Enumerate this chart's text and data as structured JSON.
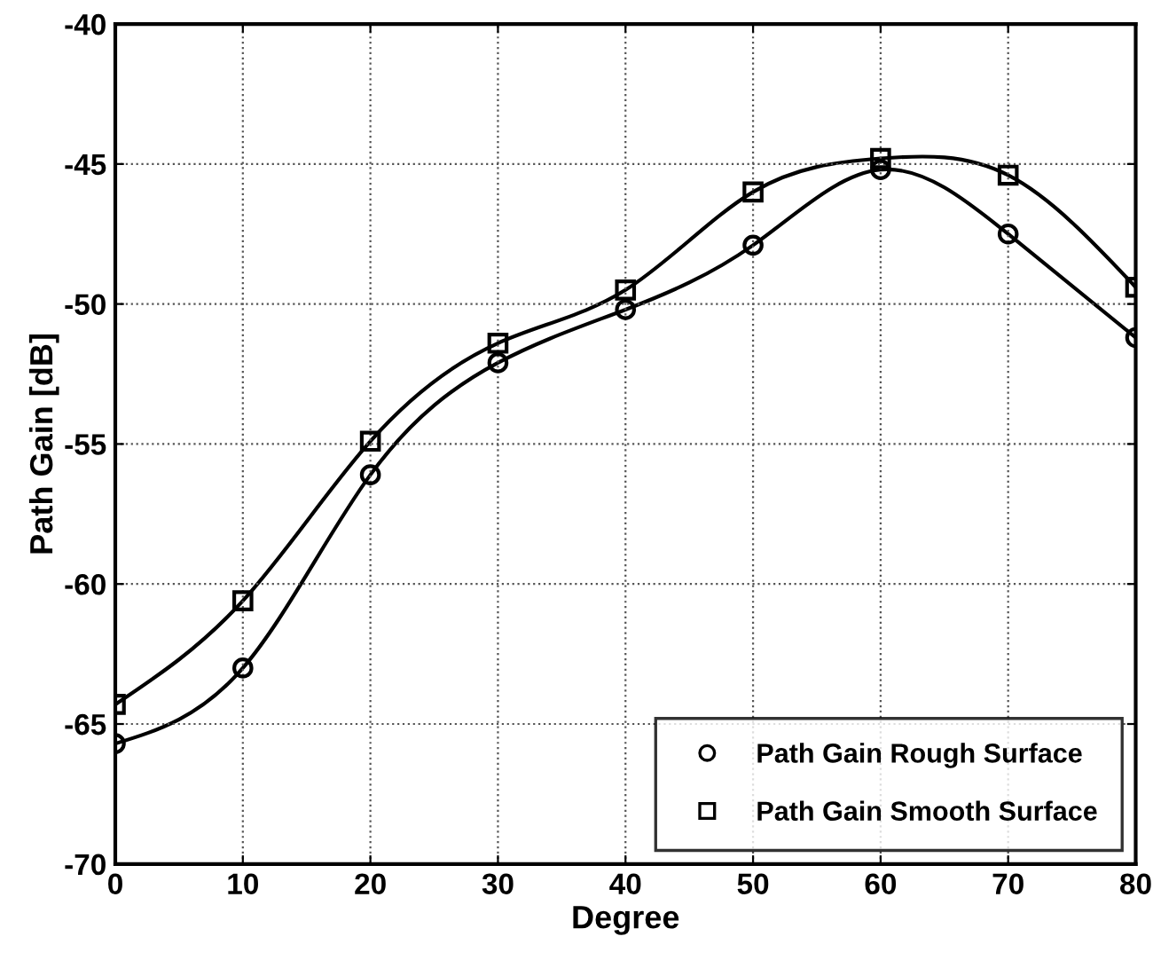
{
  "chart_data": {
    "type": "line",
    "xlabel": "Degree",
    "ylabel": "Path Gain [dB]",
    "x": [
      0,
      10,
      20,
      30,
      40,
      50,
      60,
      70,
      80
    ],
    "series": [
      {
        "name": "Path Gain Rough Surface",
        "color": "#000000",
        "marker": "circle",
        "line_style": "solid",
        "values": [
          -65.7,
          -63.0,
          -56.1,
          -52.1,
          -50.2,
          -47.9,
          -45.2,
          -47.5,
          -51.2
        ]
      },
      {
        "name": "Path Gain Smooth Surface",
        "color": "#000000",
        "marker": "square",
        "line_style": "solid",
        "values": [
          -64.3,
          -60.6,
          -54.9,
          -51.4,
          -49.5,
          -46.0,
          -44.8,
          -45.4,
          -49.4
        ]
      }
    ],
    "xlim": [
      0,
      80
    ],
    "xticks": [
      0,
      10,
      20,
      30,
      40,
      50,
      60,
      70,
      80
    ],
    "ylim": [
      -70,
      -40
    ],
    "yticks": [
      -70,
      -65,
      -60,
      -55,
      -50,
      -45,
      -40
    ],
    "grid": true,
    "legend": "bottom right"
  }
}
